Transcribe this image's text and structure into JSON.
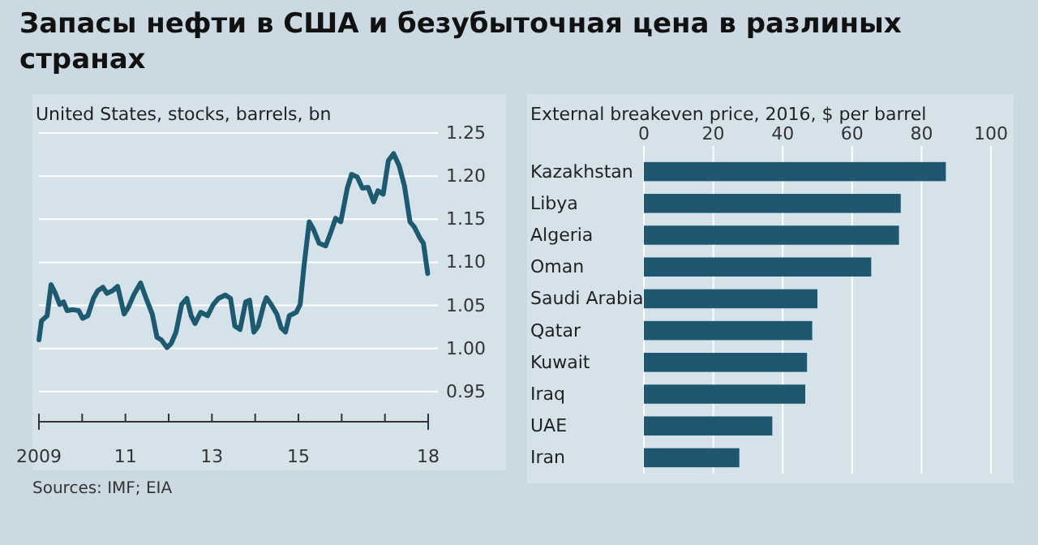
{
  "chart_data": [
    {
      "type": "line",
      "title": "Запасы нефти в США и безубыточная цена в разлиных странах",
      "subtitle": "United States, stocks, barrels, bn",
      "annotations": [
        "Sources: IMF; EIA"
      ],
      "x": [
        2009.0,
        2009.06,
        2009.19,
        2009.28,
        2009.38,
        2009.48,
        2009.57,
        2009.65,
        2009.78,
        2009.92,
        2010.01,
        2010.13,
        2010.26,
        2010.36,
        2010.48,
        2010.57,
        2010.7,
        2010.82,
        2010.97,
        2011.07,
        2011.2,
        2011.35,
        2011.48,
        2011.62,
        2011.73,
        2011.83,
        2011.96,
        2012.06,
        2012.17,
        2012.3,
        2012.42,
        2012.52,
        2012.61,
        2012.74,
        2012.9,
        2013.03,
        2013.15,
        2013.31,
        2013.43,
        2013.53,
        2013.65,
        2013.78,
        2013.87,
        2013.97,
        2014.07,
        2014.2,
        2014.26,
        2014.37,
        2014.5,
        2014.6,
        2014.7,
        2014.79,
        2014.95,
        2015.04,
        2015.13,
        2015.25,
        2015.35,
        2015.48,
        2015.63,
        2015.75,
        2015.86,
        2015.98,
        2016.13,
        2016.23,
        2016.36,
        2016.48,
        2016.61,
        2016.74,
        2016.84,
        2016.96,
        2017.08,
        2017.2,
        2017.33,
        2017.45,
        2017.58,
        2017.68,
        2017.81,
        2017.89,
        2017.99
      ],
      "series": [
        {
          "color": "#1d5a70",
          "values": [
            1.01,
            1.032,
            1.038,
            1.074,
            1.064,
            1.051,
            1.054,
            1.044,
            1.045,
            1.044,
            1.035,
            1.038,
            1.058,
            1.067,
            1.071,
            1.064,
            1.067,
            1.072,
            1.04,
            1.048,
            1.063,
            1.076,
            1.058,
            1.04,
            1.013,
            1.01,
            1.001,
            1.006,
            1.019,
            1.051,
            1.058,
            1.038,
            1.029,
            1.042,
            1.038,
            1.051,
            1.058,
            1.062,
            1.058,
            1.026,
            1.022,
            1.054,
            1.056,
            1.019,
            1.026,
            1.051,
            1.059,
            1.051,
            1.04,
            1.024,
            1.019,
            1.038,
            1.042,
            1.051,
            1.096,
            1.147,
            1.138,
            1.122,
            1.119,
            1.135,
            1.151,
            1.147,
            1.186,
            1.202,
            1.199,
            1.186,
            1.187,
            1.17,
            1.183,
            1.179,
            1.218,
            1.226,
            1.212,
            1.189,
            1.147,
            1.141,
            1.128,
            1.122,
            1.087
          ]
        }
      ],
      "xlim": [
        2009,
        2018
      ],
      "xticks": [
        {
          "value": 2009,
          "label": "2009"
        },
        {
          "value": 2010,
          "label": null
        },
        {
          "value": 2011,
          "label": "11"
        },
        {
          "value": 2012,
          "label": null
        },
        {
          "value": 2013,
          "label": "13"
        },
        {
          "value": 2014,
          "label": null
        },
        {
          "value": 2015,
          "label": "15"
        },
        {
          "value": 2016,
          "label": null
        },
        {
          "value": 2017,
          "label": null
        },
        {
          "value": 2018,
          "label": "18"
        }
      ],
      "ylim": [
        0.915,
        1.25
      ],
      "yticks": [
        {
          "value": 0.95,
          "label": "0.95"
        },
        {
          "value": 1.0,
          "label": "1.00"
        },
        {
          "value": 1.05,
          "label": "1.05"
        },
        {
          "value": 1.1,
          "label": "1.10"
        },
        {
          "value": 1.15,
          "label": "1.15"
        },
        {
          "value": 1.2,
          "label": "1.20"
        },
        {
          "value": 1.25,
          "label": "1.25"
        }
      ],
      "grid": "y",
      "marker": "none",
      "line_style": "solid"
    },
    {
      "type": "bar",
      "orientation": "horizontal",
      "title": "External breakeven price, 2016, $ per barrel",
      "categories": [
        "Kazakhstan",
        "Libya",
        "Algeria",
        "Oman",
        "Saudi Arabia",
        "Qatar",
        "Kuwait",
        "Iraq",
        "UAE",
        "Iran"
      ],
      "values": [
        87,
        74,
        73.5,
        65.5,
        50,
        48.5,
        47,
        46.5,
        37,
        27.5
      ],
      "color": "#1f5770",
      "xlim": [
        0,
        100
      ],
      "xticks": [
        0,
        20,
        40,
        60,
        80,
        100
      ],
      "grid": "x"
    }
  ]
}
